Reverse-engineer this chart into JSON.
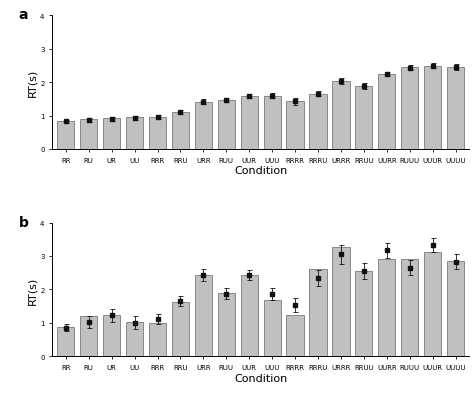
{
  "conditions": [
    "RR",
    "RU",
    "UR",
    "UU",
    "RRR",
    "RRU",
    "URR",
    "RUU",
    "UUR",
    "UUU",
    "RRRR",
    "RRRU",
    "URRR",
    "RRUU",
    "UURR",
    "RUUU",
    "UUUR",
    "UUUU"
  ],
  "panel_a": {
    "bar_heights": [
      0.85,
      0.9,
      0.92,
      0.96,
      0.97,
      1.1,
      1.42,
      1.46,
      1.58,
      1.58,
      1.43,
      1.64,
      2.04,
      1.89,
      2.24,
      2.44,
      2.49,
      2.46
    ],
    "dot_values": [
      0.83,
      0.88,
      0.91,
      0.94,
      0.97,
      1.11,
      1.42,
      1.47,
      1.59,
      1.59,
      1.43,
      1.65,
      2.03,
      1.88,
      2.24,
      2.43,
      2.49,
      2.45
    ],
    "error_bars": [
      0.05,
      0.06,
      0.06,
      0.06,
      0.06,
      0.07,
      0.06,
      0.06,
      0.06,
      0.07,
      0.1,
      0.07,
      0.08,
      0.08,
      0.07,
      0.07,
      0.08,
      0.08
    ],
    "ylim": [
      0,
      4
    ],
    "yticks": [
      0,
      1,
      2,
      3,
      4
    ],
    "ylabel": "RT(s)"
  },
  "panel_b": {
    "bar_heights": [
      0.87,
      1.2,
      1.22,
      1.02,
      1.0,
      1.63,
      2.42,
      1.88,
      2.42,
      1.69,
      1.22,
      2.62,
      3.28,
      2.56,
      2.9,
      2.9,
      3.13,
      2.86
    ],
    "dot_values": [
      0.86,
      1.02,
      1.22,
      1.01,
      1.11,
      1.65,
      2.42,
      1.87,
      2.43,
      1.86,
      1.53,
      2.33,
      3.05,
      2.55,
      3.17,
      2.65,
      3.33,
      2.83
    ],
    "error_bars": [
      0.1,
      0.18,
      0.18,
      0.2,
      0.14,
      0.16,
      0.18,
      0.16,
      0.16,
      0.18,
      0.22,
      0.24,
      0.28,
      0.24,
      0.22,
      0.22,
      0.2,
      0.22
    ],
    "ylim": [
      0,
      4
    ],
    "yticks": [
      0,
      1,
      2,
      3,
      4
    ],
    "ylabel": "RT(s)"
  },
  "xlabel": "Condition",
  "bar_color": "#c0c0c0",
  "bar_edgecolor": "#666666",
  "dot_color": "#111111",
  "dot_size": 16,
  "panel_labels": [
    "a",
    "b"
  ],
  "label_fontsize": 8,
  "axis_fontsize": 7,
  "tick_fontsize": 5.0,
  "bar_width": 0.75
}
